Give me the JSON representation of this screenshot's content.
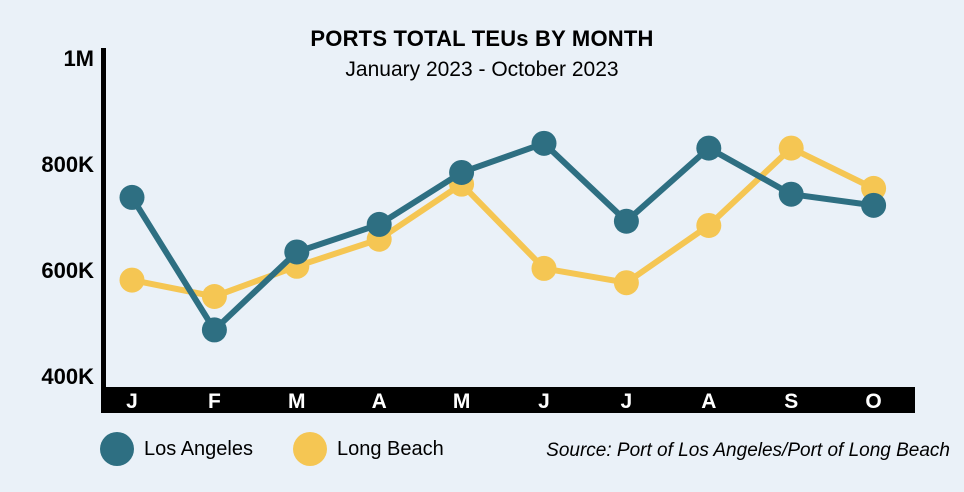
{
  "chart_data": {
    "type": "line",
    "title": "PORTS TOTAL TEUs BY MONTH",
    "subtitle": "January 2023 - October 2023",
    "categories": [
      "J",
      "F",
      "M",
      "A",
      "M",
      "J",
      "J",
      "A",
      "S",
      "O"
    ],
    "ylim": [
      400000,
      1000000
    ],
    "yticks": [
      400000,
      600000,
      800000,
      1000000
    ],
    "ytick_labels": [
      "400K",
      "600K",
      "800K",
      "1M"
    ],
    "series": [
      {
        "name": "Los Angeles",
        "color": "#2e6f82",
        "values": [
          737000,
          487000,
          634000,
          686000,
          784000,
          839000,
          692000,
          830000,
          743000,
          722000
        ]
      },
      {
        "name": "Long Beach",
        "color": "#f5c653",
        "values": [
          581000,
          550000,
          607000,
          658000,
          762000,
          603000,
          576000,
          684000,
          830000,
          754000
        ]
      }
    ],
    "legend_position": "bottom-left",
    "grid": false
  },
  "source": "Source: Port of Los Angeles/Port of Long Beach"
}
